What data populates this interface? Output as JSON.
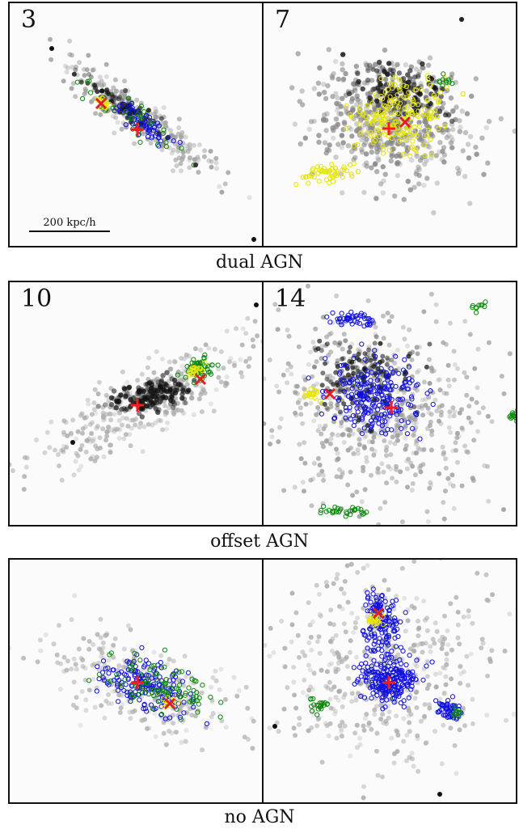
{
  "rows": [
    {
      "caption": "dual AGN",
      "panels": [
        {
          "label": "3"
        },
        {
          "label": "7"
        }
      ]
    },
    {
      "caption": "offset AGN",
      "panels": [
        {
          "label": "10"
        },
        {
          "label": "14"
        }
      ]
    },
    {
      "caption": "no AGN",
      "panels": [
        {
          "label": ""
        },
        {
          "label": ""
        }
      ]
    }
  ],
  "scale_bar": {
    "text": "200 kpc/h"
  },
  "colors": {
    "cross_plus": "#ff1a1a",
    "cross_x": "#e02020",
    "yellow_circles": "#e6e600",
    "blue_circles": "#1010e0",
    "green_circles": "#0a8a0a",
    "gas_dark": "#111111"
  }
}
